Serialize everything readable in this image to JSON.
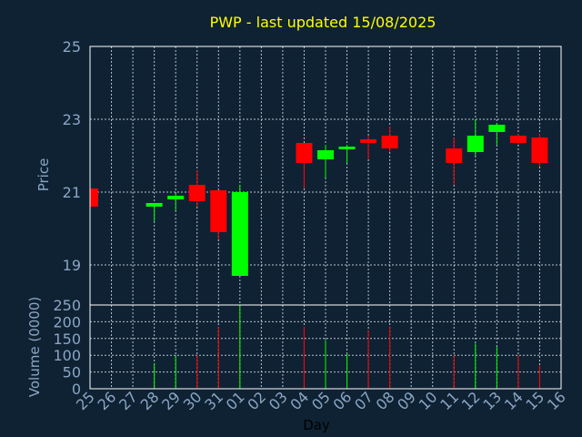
{
  "chart_data": {
    "type": "candlestick",
    "title": "PWP - last updated 15/08/2025",
    "xlabel": "Day",
    "price_panel": {
      "ylabel": "Price",
      "ylim": [
        17.9,
        25
      ],
      "yticks": [
        "25",
        "23",
        "21",
        "19"
      ],
      "ytick_values": [
        25,
        23,
        21,
        19
      ]
    },
    "volume_panel": {
      "ylabel": "Volume (0000)",
      "ylim": [
        0,
        250
      ],
      "yticks": [
        "250",
        "200",
        "150",
        "100",
        "50",
        "0"
      ],
      "ytick_values": [
        250,
        200,
        150,
        100,
        50,
        0
      ]
    },
    "days": [
      "25",
      "26",
      "27",
      "28",
      "29",
      "30",
      "31",
      "01",
      "02",
      "03",
      "04",
      "05",
      "06",
      "07",
      "08",
      "09",
      "10",
      "11",
      "12",
      "13",
      "14",
      "15",
      "16"
    ],
    "candles": [
      {
        "day": "25",
        "open": 21.1,
        "close": 20.6,
        "high": 21.1,
        "low": 20.5,
        "volume": 0
      },
      {
        "day": "28",
        "open": 20.6,
        "close": 20.7,
        "high": 20.7,
        "low": 20.2,
        "volume": 75
      },
      {
        "day": "29",
        "open": 20.8,
        "close": 20.9,
        "high": 20.95,
        "low": 20.5,
        "volume": 100
      },
      {
        "day": "30",
        "open": 21.2,
        "close": 20.75,
        "high": 21.6,
        "low": 20.6,
        "volume": 100
      },
      {
        "day": "31",
        "open": 21.05,
        "close": 19.9,
        "high": 21.05,
        "low": 19.7,
        "volume": 185
      },
      {
        "day": "01",
        "open": 18.7,
        "close": 21.0,
        "high": 21.2,
        "low": 18.7,
        "volume": 250
      },
      {
        "day": "04",
        "open": 22.35,
        "close": 21.8,
        "high": 22.35,
        "low": 21.1,
        "volume": 185
      },
      {
        "day": "05",
        "open": 21.9,
        "close": 22.15,
        "high": 22.3,
        "low": 21.4,
        "volume": 145
      },
      {
        "day": "06",
        "open": 22.2,
        "close": 22.25,
        "high": 22.3,
        "low": 21.8,
        "volume": 105
      },
      {
        "day": "07",
        "open": 22.45,
        "close": 22.35,
        "high": 22.55,
        "low": 21.9,
        "volume": 175
      },
      {
        "day": "08",
        "open": 22.55,
        "close": 22.2,
        "high": 22.8,
        "low": 22.1,
        "volume": 185
      },
      {
        "day": "11",
        "open": 22.2,
        "close": 21.8,
        "high": 22.5,
        "low": 21.2,
        "volume": 100
      },
      {
        "day": "12",
        "open": 22.1,
        "close": 22.55,
        "high": 23.0,
        "low": 22.0,
        "volume": 135
      },
      {
        "day": "13",
        "open": 22.65,
        "close": 22.85,
        "high": 22.9,
        "low": 22.3,
        "volume": 125
      },
      {
        "day": "14",
        "open": 22.55,
        "close": 22.35,
        "high": 22.6,
        "low": 22.3,
        "volume": 100
      },
      {
        "day": "15",
        "open": 22.5,
        "close": 21.8,
        "high": 22.6,
        "low": 21.7,
        "volume": 70
      }
    ],
    "colors": {
      "background": "#0f2233",
      "up": "#00ff00",
      "down": "#ff0000",
      "grid": "#b4c2cc",
      "axis_text": "#8aa6c4",
      "title": "#ffff00",
      "xlabel": "#000000"
    },
    "grid": true
  }
}
